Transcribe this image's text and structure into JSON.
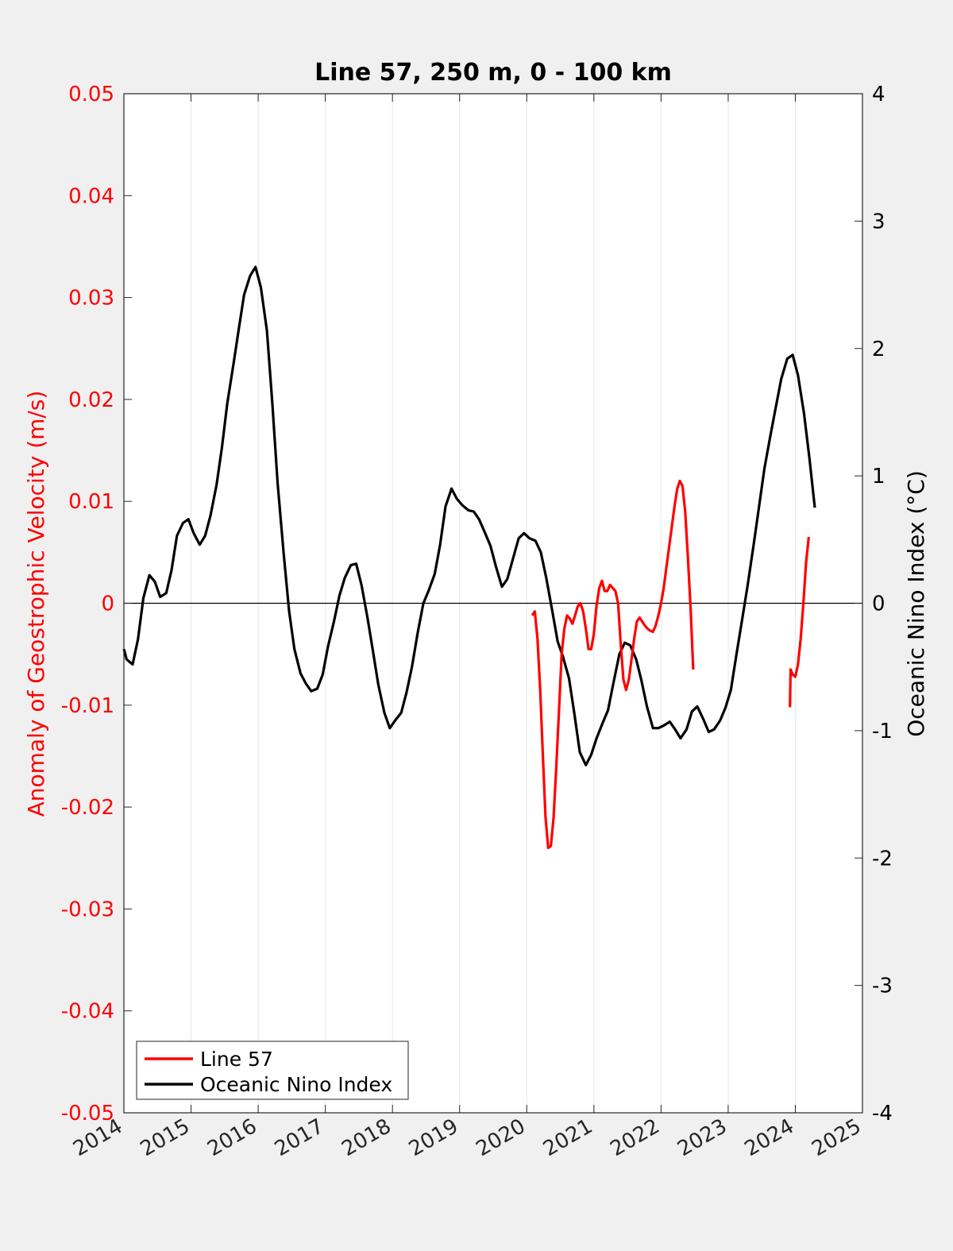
{
  "chart_data": {
    "type": "line",
    "title": "Line 57, 250 m, 0 - 100 km",
    "ylabel_left": "Anomaly of Geostrophic Velocity (m/s)",
    "ylabel_right": "Oceanic Nino Index (°C)",
    "xlim": [
      2014,
      2025
    ],
    "ylim_left": [
      -0.05,
      0.05
    ],
    "ylim_right": [
      -4,
      4
    ],
    "x_ticks": [
      "2014",
      "2015",
      "2016",
      "2017",
      "2018",
      "2019",
      "2020",
      "2021",
      "2022",
      "2023",
      "2024",
      "2025"
    ],
    "yticks_left": [
      "0.05",
      "0.04",
      "0.03",
      "0.02",
      "0.01",
      "0",
      "-0.01",
      "-0.02",
      "-0.03",
      "-0.04",
      "-0.05"
    ],
    "yticks_right": [
      "4",
      "3",
      "2",
      "1",
      "0",
      "-1",
      "-2",
      "-3",
      "-4"
    ],
    "vertical_grid": true,
    "zero_line": true,
    "legend_position": "bottom-left",
    "colors": {
      "line57": "#ff0000",
      "oni": "#000000",
      "left_axis": "#ff0000",
      "right_axis": "#000000"
    },
    "series": [
      {
        "name": "Line 57",
        "axis": "left",
        "color": "#ff0000",
        "segments": [
          [
            [
              2020.08,
              -0.0012
            ],
            [
              2020.12,
              -0.0008
            ],
            [
              2020.16,
              -0.0035
            ],
            [
              2020.2,
              -0.0085
            ],
            [
              2020.24,
              -0.015
            ],
            [
              2020.28,
              -0.021
            ],
            [
              2020.32,
              -0.024
            ],
            [
              2020.36,
              -0.0238
            ],
            [
              2020.4,
              -0.021
            ],
            [
              2020.44,
              -0.016
            ],
            [
              2020.48,
              -0.0105
            ],
            [
              2020.52,
              -0.005
            ],
            [
              2020.56,
              -0.0025
            ],
            [
              2020.6,
              -0.0012
            ],
            [
              2020.64,
              -0.0015
            ],
            [
              2020.68,
              -0.002
            ],
            [
              2020.72,
              -0.0012
            ],
            [
              2020.76,
              -0.0003
            ],
            [
              2020.8,
              0.0
            ],
            [
              2020.84,
              -0.0008
            ],
            [
              2020.88,
              -0.0025
            ],
            [
              2020.92,
              -0.0045
            ],
            [
              2020.96,
              -0.0045
            ],
            [
              2021.0,
              -0.003
            ],
            [
              2021.04,
              -0.0002
            ],
            [
              2021.08,
              0.0015
            ],
            [
              2021.12,
              0.0022
            ],
            [
              2021.16,
              0.0012
            ],
            [
              2021.2,
              0.0012
            ],
            [
              2021.24,
              0.0018
            ],
            [
              2021.28,
              0.0015
            ],
            [
              2021.32,
              0.0012
            ],
            [
              2021.36,
              0.0
            ],
            [
              2021.4,
              -0.004
            ],
            [
              2021.44,
              -0.0075
            ],
            [
              2021.48,
              -0.0085
            ],
            [
              2021.52,
              -0.0075
            ],
            [
              2021.56,
              -0.0055
            ],
            [
              2021.6,
              -0.0035
            ],
            [
              2021.64,
              -0.0018
            ],
            [
              2021.68,
              -0.0014
            ],
            [
              2021.72,
              -0.0018
            ],
            [
              2021.76,
              -0.0022
            ],
            [
              2021.8,
              -0.0025
            ],
            [
              2021.84,
              -0.0027
            ],
            [
              2021.88,
              -0.0028
            ],
            [
              2021.92,
              -0.0022
            ],
            [
              2021.96,
              -0.0012
            ],
            [
              2022.0,
              0.0
            ],
            [
              2022.04,
              0.0015
            ],
            [
              2022.08,
              0.0035
            ],
            [
              2022.12,
              0.0055
            ],
            [
              2022.16,
              0.0075
            ],
            [
              2022.2,
              0.0095
            ],
            [
              2022.24,
              0.0112
            ],
            [
              2022.28,
              0.012
            ],
            [
              2022.32,
              0.0115
            ],
            [
              2022.36,
              0.009
            ],
            [
              2022.4,
              0.0045
            ],
            [
              2022.44,
              -0.0005
            ],
            [
              2022.48,
              -0.0065
            ]
          ],
          [
            [
              2023.92,
              -0.0102
            ],
            [
              2023.93,
              -0.0065
            ],
            [
              2023.96,
              -0.007
            ],
            [
              2024.0,
              -0.0072
            ],
            [
              2024.04,
              -0.006
            ],
            [
              2024.08,
              -0.0035
            ],
            [
              2024.12,
              0.0
            ],
            [
              2024.16,
              0.004
            ],
            [
              2024.2,
              0.0065
            ]
          ]
        ]
      },
      {
        "name": "Oceanic Nino Index",
        "axis": "right",
        "color": "#000000",
        "values": [
          [
            2014.0,
            -0.36
          ],
          [
            2014.04,
            -0.44
          ],
          [
            2014.13,
            -0.48
          ],
          [
            2014.21,
            -0.28
          ],
          [
            2014.29,
            0.04
          ],
          [
            2014.38,
            0.22
          ],
          [
            2014.46,
            0.17
          ],
          [
            2014.54,
            0.05
          ],
          [
            2014.63,
            0.08
          ],
          [
            2014.71,
            0.26
          ],
          [
            2014.79,
            0.53
          ],
          [
            2014.88,
            0.63
          ],
          [
            2014.96,
            0.66
          ],
          [
            2015.04,
            0.55
          ],
          [
            2015.13,
            0.46
          ],
          [
            2015.21,
            0.53
          ],
          [
            2015.29,
            0.69
          ],
          [
            2015.38,
            0.93
          ],
          [
            2015.46,
            1.22
          ],
          [
            2015.54,
            1.57
          ],
          [
            2015.63,
            1.87
          ],
          [
            2015.71,
            2.15
          ],
          [
            2015.79,
            2.42
          ],
          [
            2015.88,
            2.57
          ],
          [
            2015.96,
            2.64
          ],
          [
            2016.04,
            2.48
          ],
          [
            2016.13,
            2.14
          ],
          [
            2016.21,
            1.58
          ],
          [
            2016.29,
            0.94
          ],
          [
            2016.38,
            0.39
          ],
          [
            2016.46,
            -0.06
          ],
          [
            2016.54,
            -0.36
          ],
          [
            2016.63,
            -0.55
          ],
          [
            2016.71,
            -0.63
          ],
          [
            2016.79,
            -0.69
          ],
          [
            2016.88,
            -0.67
          ],
          [
            2016.96,
            -0.56
          ],
          [
            2017.04,
            -0.34
          ],
          [
            2017.13,
            -0.14
          ],
          [
            2017.21,
            0.06
          ],
          [
            2017.29,
            0.2
          ],
          [
            2017.38,
            0.3
          ],
          [
            2017.46,
            0.31
          ],
          [
            2017.54,
            0.14
          ],
          [
            2017.63,
            -0.12
          ],
          [
            2017.71,
            -0.38
          ],
          [
            2017.79,
            -0.64
          ],
          [
            2017.88,
            -0.86
          ],
          [
            2017.96,
            -0.98
          ],
          [
            2018.04,
            -0.92
          ],
          [
            2018.13,
            -0.86
          ],
          [
            2018.21,
            -0.7
          ],
          [
            2018.29,
            -0.5
          ],
          [
            2018.38,
            -0.22
          ],
          [
            2018.46,
            0.0
          ],
          [
            2018.54,
            0.1
          ],
          [
            2018.63,
            0.23
          ],
          [
            2018.71,
            0.46
          ],
          [
            2018.79,
            0.76
          ],
          [
            2018.88,
            0.9
          ],
          [
            2018.96,
            0.82
          ],
          [
            2019.04,
            0.77
          ],
          [
            2019.13,
            0.73
          ],
          [
            2019.21,
            0.72
          ],
          [
            2019.29,
            0.66
          ],
          [
            2019.38,
            0.55
          ],
          [
            2019.46,
            0.45
          ],
          [
            2019.54,
            0.29
          ],
          [
            2019.63,
            0.13
          ],
          [
            2019.71,
            0.19
          ],
          [
            2019.79,
            0.34
          ],
          [
            2019.88,
            0.51
          ],
          [
            2019.96,
            0.55
          ],
          [
            2020.04,
            0.51
          ],
          [
            2020.13,
            0.49
          ],
          [
            2020.21,
            0.4
          ],
          [
            2020.29,
            0.2
          ],
          [
            2020.38,
            -0.06
          ],
          [
            2020.46,
            -0.3
          ],
          [
            2020.54,
            -0.42
          ],
          [
            2020.63,
            -0.59
          ],
          [
            2020.71,
            -0.87
          ],
          [
            2020.79,
            -1.17
          ],
          [
            2020.88,
            -1.27
          ],
          [
            2020.96,
            -1.19
          ],
          [
            2021.04,
            -1.06
          ],
          [
            2021.13,
            -0.94
          ],
          [
            2021.21,
            -0.84
          ],
          [
            2021.29,
            -0.63
          ],
          [
            2021.38,
            -0.4
          ],
          [
            2021.46,
            -0.31
          ],
          [
            2021.54,
            -0.33
          ],
          [
            2021.63,
            -0.44
          ],
          [
            2021.71,
            -0.61
          ],
          [
            2021.79,
            -0.81
          ],
          [
            2021.88,
            -0.98
          ],
          [
            2021.96,
            -0.98
          ],
          [
            2022.04,
            -0.96
          ],
          [
            2022.13,
            -0.93
          ],
          [
            2022.21,
            -0.99
          ],
          [
            2022.29,
            -1.06
          ],
          [
            2022.38,
            -0.99
          ],
          [
            2022.46,
            -0.85
          ],
          [
            2022.54,
            -0.81
          ],
          [
            2022.63,
            -0.91
          ],
          [
            2022.71,
            -1.01
          ],
          [
            2022.79,
            -0.99
          ],
          [
            2022.88,
            -0.92
          ],
          [
            2022.96,
            -0.82
          ],
          [
            2023.04,
            -0.68
          ],
          [
            2023.13,
            -0.38
          ],
          [
            2023.21,
            -0.12
          ],
          [
            2023.29,
            0.14
          ],
          [
            2023.38,
            0.46
          ],
          [
            2023.46,
            0.76
          ],
          [
            2023.54,
            1.06
          ],
          [
            2023.63,
            1.32
          ],
          [
            2023.71,
            1.54
          ],
          [
            2023.79,
            1.76
          ],
          [
            2023.88,
            1.92
          ],
          [
            2023.96,
            1.95
          ],
          [
            2024.04,
            1.79
          ],
          [
            2024.13,
            1.49
          ],
          [
            2024.21,
            1.14
          ],
          [
            2024.29,
            0.75
          ]
        ]
      }
    ]
  }
}
